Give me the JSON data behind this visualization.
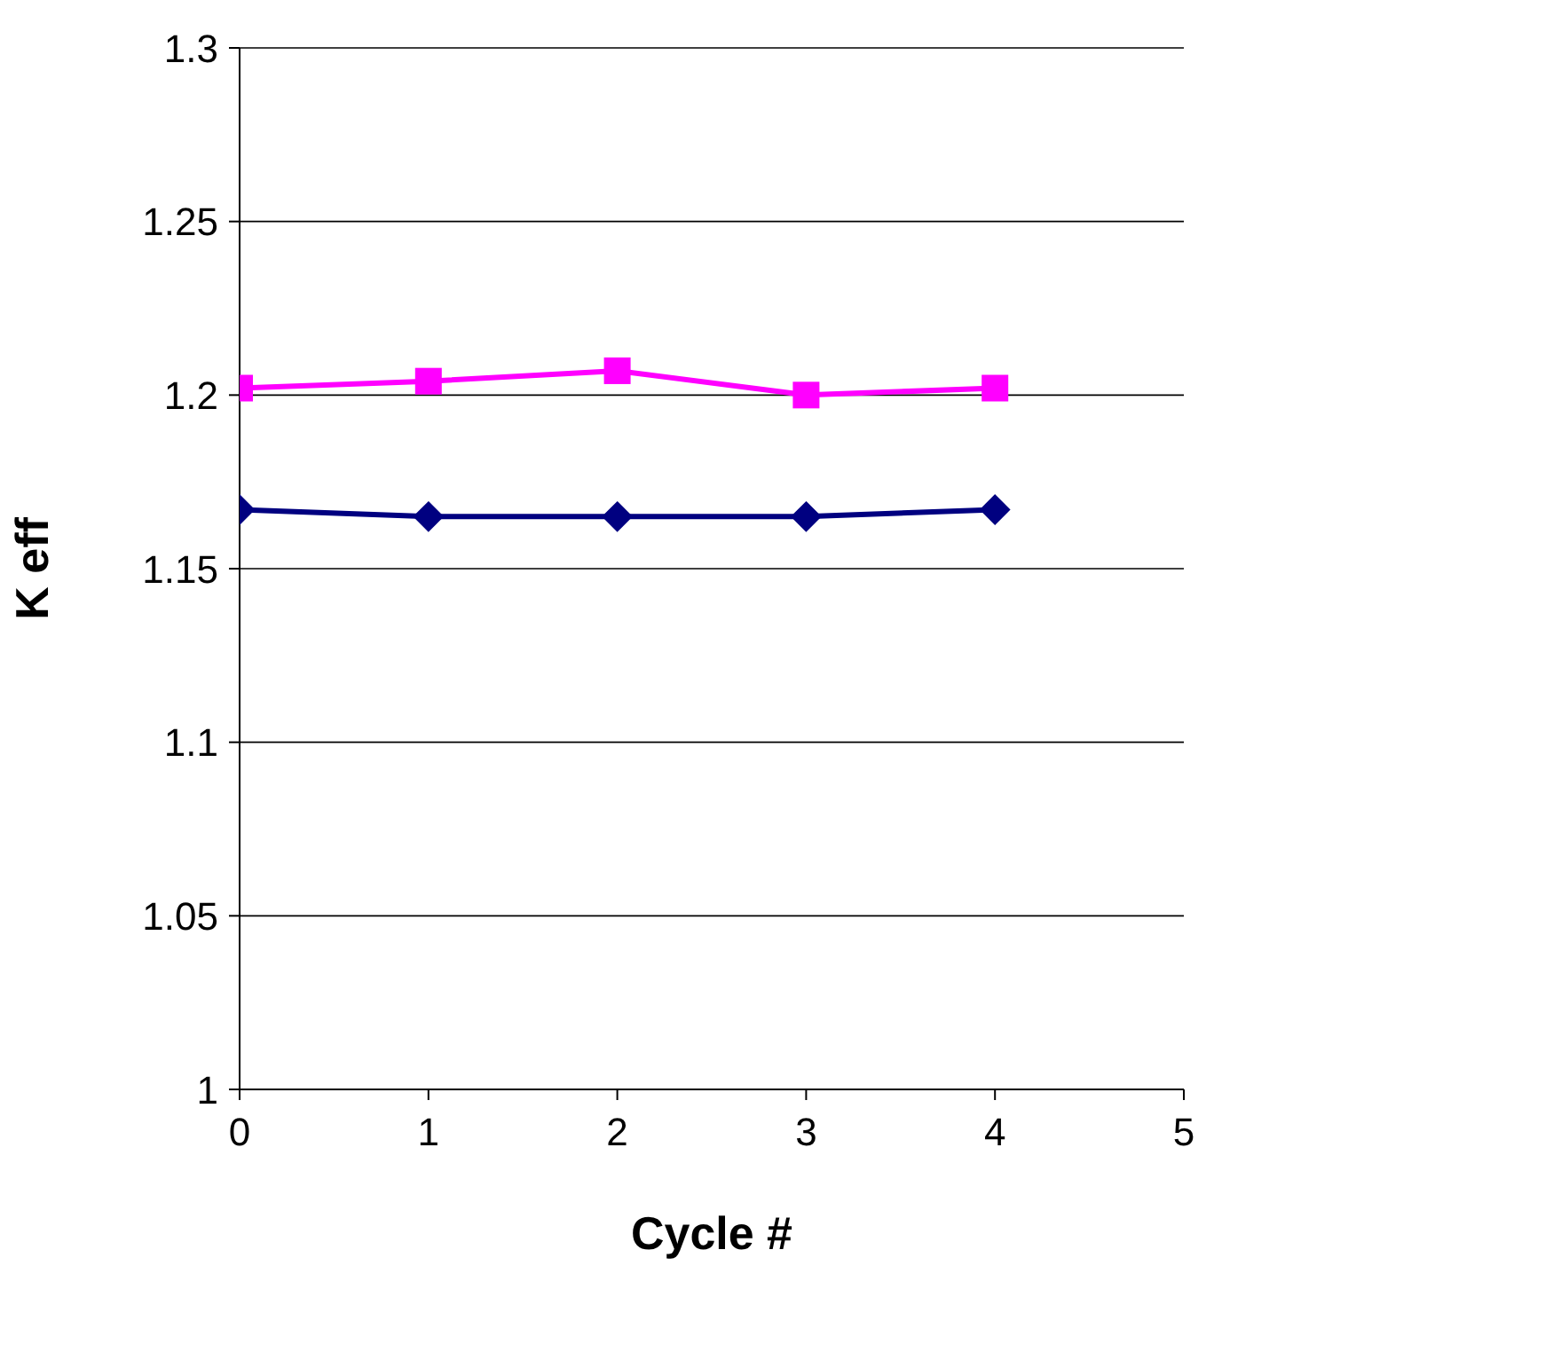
{
  "chart_data": {
    "type": "line",
    "xlabel": "Cycle #",
    "ylabel": "K eff",
    "x": [
      0,
      1,
      2,
      3,
      4
    ],
    "series": [
      {
        "color": "#000080",
        "marker": "diamond",
        "values": [
          1.167,
          1.165,
          1.165,
          1.165,
          1.167
        ]
      },
      {
        "color": "#ff00ff",
        "marker": "square",
        "values": [
          1.202,
          1.204,
          1.207,
          1.2,
          1.202
        ]
      }
    ],
    "xlim": [
      0,
      5
    ],
    "xticks": [
      0,
      1,
      2,
      3,
      4,
      5
    ],
    "ylim": [
      1,
      1.3
    ],
    "yticks": [
      1,
      1.05,
      1.1,
      1.15,
      1.2,
      1.25,
      1.3
    ],
    "grid": "y",
    "line_style": "solid"
  }
}
